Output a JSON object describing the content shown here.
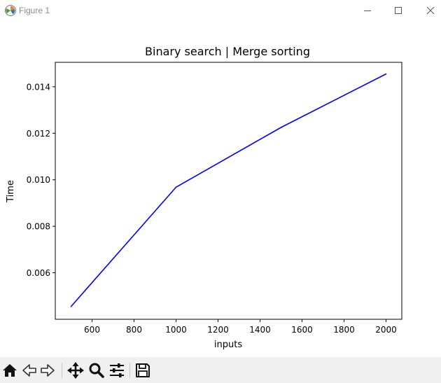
{
  "window": {
    "title": "Figure 1",
    "icon": "matplotlib-figure-icon",
    "controls": [
      "minimize-icon",
      "maximize-icon",
      "close-icon"
    ]
  },
  "toolbar": {
    "buttons": [
      {
        "icon": "home-icon"
      },
      {
        "icon": "back-arrow-icon"
      },
      {
        "icon": "forward-arrow-icon"
      },
      {
        "icon": "pan-move-icon"
      },
      {
        "icon": "zoom-magnifier-icon"
      },
      {
        "icon": "configure-subplots-icon"
      },
      {
        "icon": "save-floppy-icon"
      }
    ]
  },
  "chart_data": {
    "type": "line",
    "title": "Binary search | Merge sorting",
    "xlabel": "inputs",
    "ylabel": "Time",
    "x": [
      500,
      1000,
      1500,
      2000
    ],
    "series": [
      {
        "values": [
          0.00455,
          0.00968,
          0.01225,
          0.01455
        ],
        "color": "#0000ff"
      }
    ],
    "xticks": [
      600,
      800,
      1000,
      1200,
      1400,
      1600,
      1800,
      2000
    ],
    "xtick_labels": [
      "600",
      "800",
      "1000",
      "1200",
      "1400",
      "1600",
      "1800",
      "2000"
    ],
    "yticks": [
      0.006,
      0.008,
      0.01,
      0.012,
      0.014
    ],
    "ytick_labels": [
      "0.006",
      "0.008",
      "0.010",
      "0.012",
      "0.014"
    ],
    "xlim": [
      425,
      2075
    ],
    "ylim": [
      0.004,
      0.01505
    ],
    "grid": false,
    "legend": false
  }
}
